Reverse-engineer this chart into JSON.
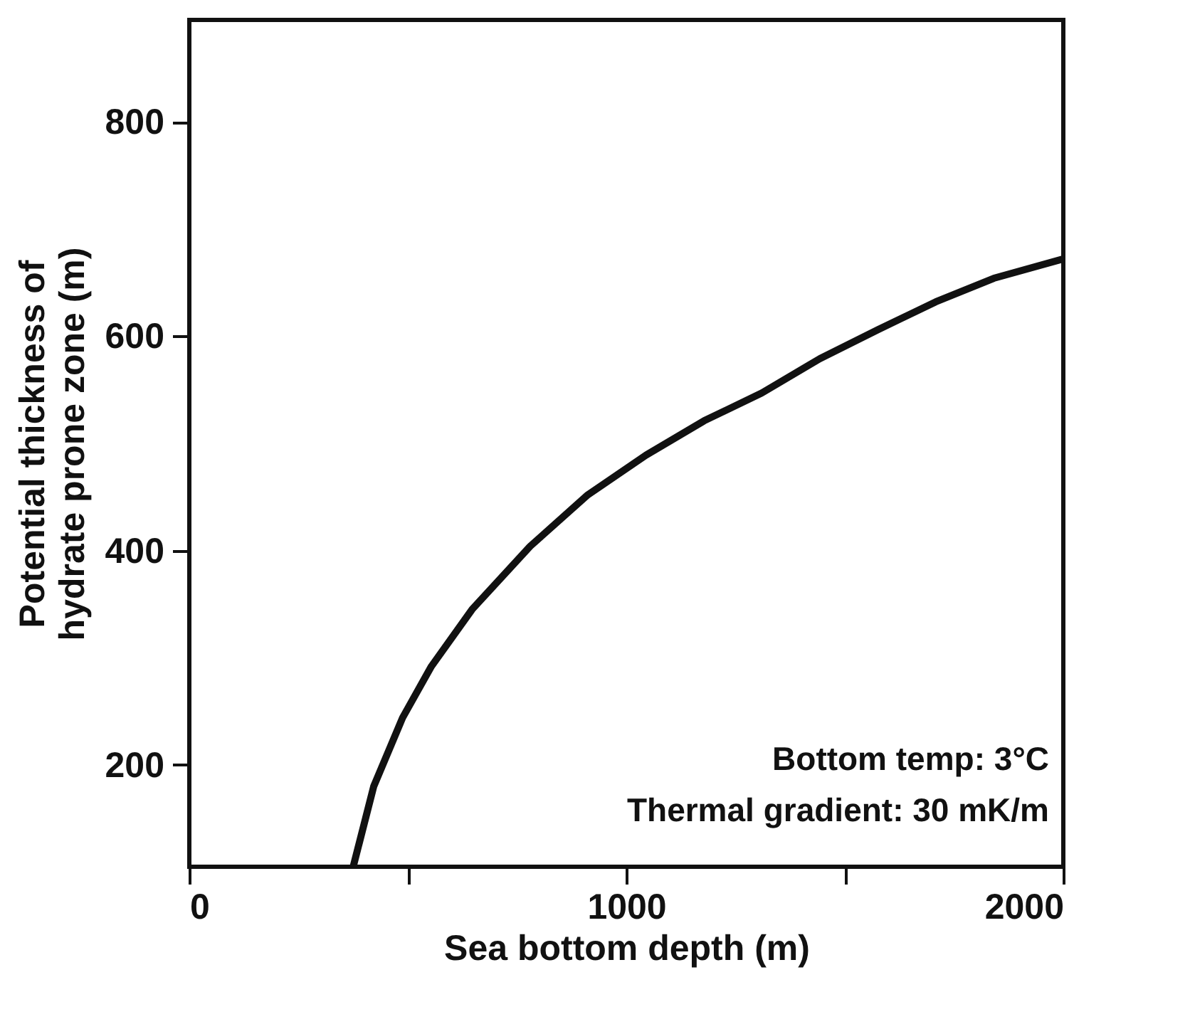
{
  "chart_data": {
    "type": "line",
    "xlabel": "Sea bottom depth (m)",
    "ylabel": "Potential thickness of hydrate prone zone (m)",
    "x": [
      375,
      422,
      488,
      554,
      647,
      780,
      912,
      1045,
      1178,
      1310,
      1443,
      1576,
      1708,
      1841,
      2000
    ],
    "series": [
      {
        "color": "#111111",
        "values": [
          105,
          180,
          244,
          292,
          345,
          404,
          452,
          489,
          521,
          547,
          579,
          606,
          632,
          654,
          672
        ]
      }
    ],
    "xlim": [
      0,
      2000
    ],
    "xticks": [
      0,
      {
        "value": 500,
        "label": null
      },
      1000,
      {
        "value": 1500,
        "label": null
      },
      2000
    ],
    "ylim": [
      105,
      895
    ],
    "yticks": [
      200,
      400,
      600,
      800
    ],
    "grid": false,
    "legend": false,
    "marker": "none",
    "line_style": "solid",
    "annotations": [
      "Bottom temp: 3°C",
      "Thermal gradient: 30 mK/m"
    ]
  }
}
